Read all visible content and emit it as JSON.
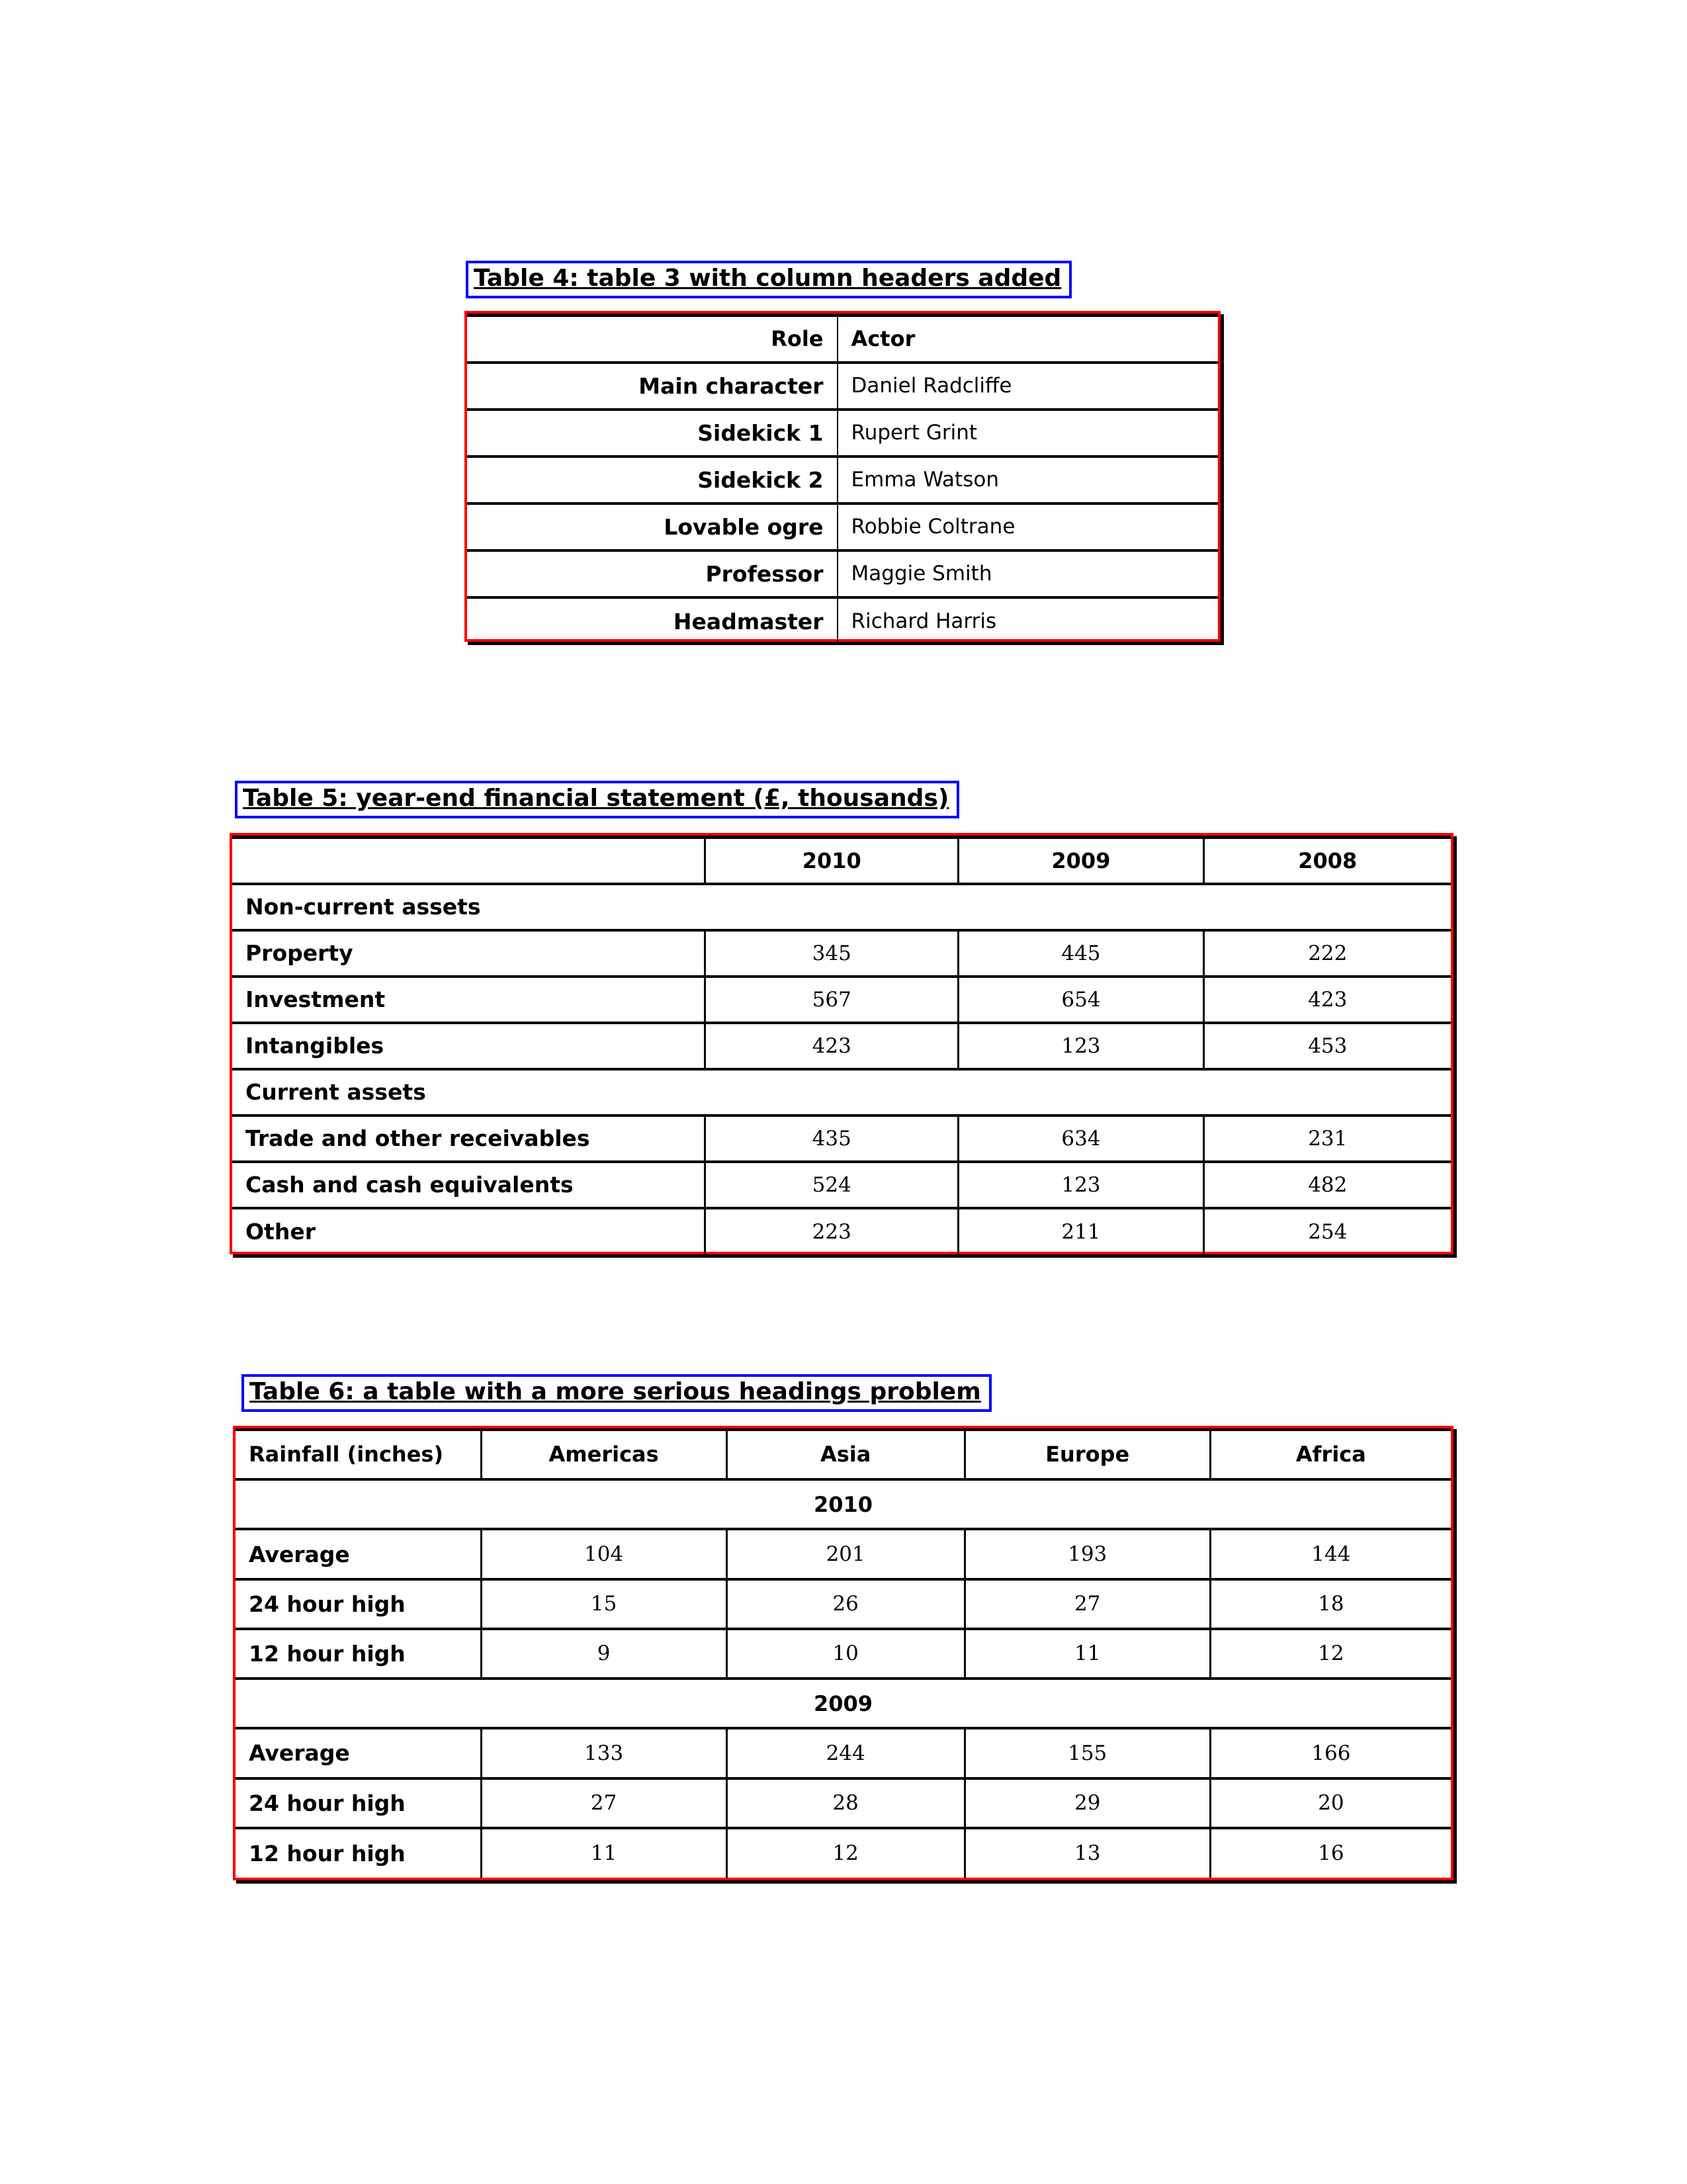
{
  "colors": {
    "table_border": "#ff0000",
    "caption_border": "#0000ff",
    "grid_lines": "#000000",
    "background": "#ffffff"
  },
  "captions": {
    "table4": "Table 4: table 3 with column headers added",
    "table5": "Table 5: year-end financial statement (£, thousands)",
    "table6": "Table 6: a table with a more serious headings problem"
  },
  "tables": {
    "t4": {
      "header": [
        "Role",
        "Actor"
      ],
      "col_widths": [
        "49.3%",
        "50.7%"
      ],
      "value_class": "text",
      "rows": [
        {
          "type": "data",
          "label": "Main character",
          "values": [
            "Daniel Radcliffe"
          ]
        },
        {
          "type": "data",
          "label": "Sidekick 1",
          "values": [
            "Rupert Grint"
          ]
        },
        {
          "type": "data",
          "label": "Sidekick 2",
          "values": [
            "Emma Watson"
          ]
        },
        {
          "type": "data",
          "label": "Lovable ogre",
          "values": [
            "Robbie Coltrane"
          ]
        },
        {
          "type": "data",
          "label": "Professor",
          "values": [
            "Maggie Smith"
          ]
        },
        {
          "type": "data",
          "label": "Headmaster",
          "values": [
            "Richard Harris"
          ]
        }
      ]
    },
    "t5": {
      "header": [
        "",
        "2010",
        "2009",
        "2008"
      ],
      "col_widths": [
        "38.8%",
        "20.8%",
        "20.1%",
        "20.3%"
      ],
      "value_class": "num",
      "rows": [
        {
          "type": "section",
          "label": "Non-current assets"
        },
        {
          "type": "data",
          "label": "Property",
          "values": [
            "345",
            "445",
            "222"
          ]
        },
        {
          "type": "data",
          "label": "Investment",
          "values": [
            "567",
            "654",
            "423"
          ]
        },
        {
          "type": "data",
          "label": "Intangibles",
          "values": [
            "423",
            "123",
            "453"
          ]
        },
        {
          "type": "section",
          "label": "Current assets"
        },
        {
          "type": "data",
          "label": "Trade and other receivables",
          "values": [
            "435",
            "634",
            "231"
          ]
        },
        {
          "type": "data",
          "label": "Cash and cash equivalents",
          "values": [
            "524",
            "123",
            "482"
          ]
        },
        {
          "type": "data",
          "label": "Other",
          "values": [
            "223",
            "211",
            "254"
          ]
        }
      ]
    },
    "t6": {
      "header": [
        "Rainfall (inches)",
        "Americas",
        "Asia",
        "Europe",
        "Africa"
      ],
      "col_widths": [
        "20.2%",
        "20.2%",
        "19.6%",
        "20.2%",
        "19.8%"
      ],
      "value_class": "num",
      "rows": [
        {
          "type": "banner",
          "label": "2010"
        },
        {
          "type": "data",
          "label": "Average",
          "values": [
            "104",
            "201",
            "193",
            "144"
          ]
        },
        {
          "type": "data",
          "label": "24 hour high",
          "values": [
            "15",
            "26",
            "27",
            "18"
          ]
        },
        {
          "type": "data",
          "label": "12 hour high",
          "values": [
            "9",
            "10",
            "11",
            "12"
          ]
        },
        {
          "type": "banner",
          "label": "2009"
        },
        {
          "type": "data",
          "label": "Average",
          "values": [
            "133",
            "244",
            "155",
            "166"
          ]
        },
        {
          "type": "data",
          "label": "24 hour high",
          "values": [
            "27",
            "28",
            "29",
            "20"
          ]
        },
        {
          "type": "data",
          "label": "12 hour high",
          "values": [
            "11",
            "12",
            "13",
            "16"
          ]
        }
      ]
    }
  }
}
